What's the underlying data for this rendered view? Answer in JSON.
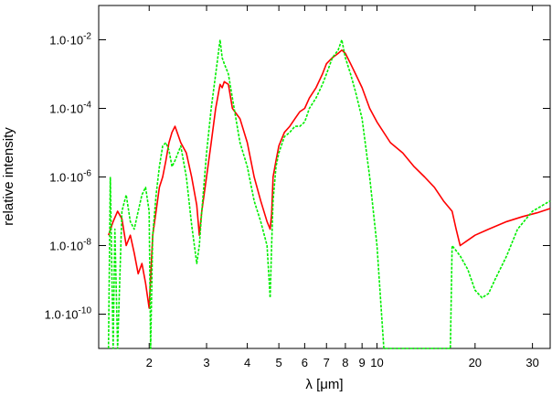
{
  "chart_data": {
    "type": "line",
    "title": "",
    "xlabel": "λ [μm]",
    "ylabel": "relative intensity",
    "x_scale": "log",
    "y_scale": "log",
    "xlim": [
      1.4,
      34
    ],
    "ylim": [
      1e-11,
      0.1
    ],
    "grid": false,
    "x_ticks": [
      {
        "value": 2,
        "label": "2"
      },
      {
        "value": 3,
        "label": "3"
      },
      {
        "value": 4,
        "label": "4"
      },
      {
        "value": 5,
        "label": "5"
      },
      {
        "value": 6,
        "label": "6"
      },
      {
        "value": 7,
        "label": "7"
      },
      {
        "value": 8,
        "label": "8"
      },
      {
        "value": 9,
        "label": "9"
      },
      {
        "value": 10,
        "label": "10"
      },
      {
        "value": 20,
        "label": "20"
      },
      {
        "value": 30,
        "label": "30"
      }
    ],
    "y_ticks": [
      {
        "value": 1e-10,
        "label": "1.0·10",
        "exp": "-10"
      },
      {
        "value": 1e-08,
        "label": "1.0·10",
        "exp": "-8"
      },
      {
        "value": 1e-06,
        "label": "1.0·10",
        "exp": "-6"
      },
      {
        "value": 0.0001,
        "label": "1.0·10",
        "exp": "-4"
      },
      {
        "value": 0.01,
        "label": "1.0·10",
        "exp": "-2"
      }
    ],
    "series": [
      {
        "color": "#ff0000",
        "dash": "solid",
        "x": [
          1.5,
          1.55,
          1.6,
          1.65,
          1.7,
          1.75,
          1.8,
          1.85,
          1.9,
          1.95,
          2.0,
          2.05,
          2.1,
          2.15,
          2.2,
          2.25,
          2.3,
          2.35,
          2.4,
          2.5,
          2.6,
          2.7,
          2.8,
          2.85,
          2.9,
          3.0,
          3.1,
          3.2,
          3.3,
          3.35,
          3.4,
          3.5,
          3.6,
          3.8,
          4.0,
          4.2,
          4.4,
          4.6,
          4.7,
          4.75,
          4.8,
          4.9,
          5.0,
          5.2,
          5.4,
          5.6,
          5.8,
          6.0,
          6.2,
          6.5,
          6.8,
          7.0,
          7.3,
          7.6,
          7.8,
          8.0,
          8.3,
          8.6,
          9.0,
          9.5,
          10.0,
          11.0,
          12.0,
          13.0,
          14.0,
          15.0,
          16.0,
          17.0,
          17.5,
          18.0,
          20.0,
          22.0,
          25.0,
          28.0,
          31.0,
          34.0
        ],
        "y": [
          2e-08,
          5e-08,
          1e-07,
          6e-08,
          1e-08,
          2e-08,
          6e-09,
          1.5e-09,
          3e-09,
          8e-10,
          1.5e-10,
          2e-08,
          1e-07,
          5e-07,
          1e-06,
          3e-06,
          1e-05,
          2e-05,
          3e-05,
          1e-05,
          5e-06,
          1e-06,
          1.5e-07,
          2e-08,
          1e-07,
          1e-06,
          1e-05,
          0.0001,
          0.0005,
          0.0004,
          0.0006,
          0.0005,
          0.0001,
          5e-05,
          1e-05,
          1e-06,
          2e-07,
          5e-08,
          3e-08,
          8e-08,
          1e-06,
          3e-06,
          8e-06,
          2e-05,
          3e-05,
          5e-05,
          8e-05,
          0.0001,
          0.0002,
          0.0004,
          0.001,
          0.002,
          0.003,
          0.004,
          0.005,
          0.004,
          0.002,
          0.001,
          0.0004,
          0.0001,
          4e-05,
          1e-05,
          5e-06,
          2e-06,
          1e-06,
          5e-07,
          2e-07,
          1e-07,
          3e-08,
          1e-08,
          2e-08,
          3e-08,
          5e-08,
          7e-08,
          9e-08,
          1.2e-07
        ]
      },
      {
        "color": "#00ee00",
        "dash": "dashed",
        "x": [
          1.5,
          1.52,
          1.55,
          1.57,
          1.6,
          1.65,
          1.7,
          1.75,
          1.8,
          1.85,
          1.9,
          1.95,
          2.0,
          2.02,
          2.05,
          2.1,
          2.15,
          2.2,
          2.25,
          2.3,
          2.35,
          2.4,
          2.5,
          2.6,
          2.7,
          2.8,
          2.85,
          2.9,
          3.0,
          3.1,
          3.2,
          3.3,
          3.35,
          3.4,
          3.5,
          3.6,
          3.8,
          4.0,
          4.2,
          4.4,
          4.6,
          4.7,
          4.75,
          4.8,
          4.9,
          5.0,
          5.2,
          5.4,
          5.6,
          5.8,
          6.0,
          6.2,
          6.5,
          6.8,
          7.0,
          7.3,
          7.6,
          7.8,
          8.0,
          8.3,
          8.6,
          9.0,
          9.5,
          10.0,
          10.5,
          11.0,
          11.3,
          16.8,
          17.0,
          18.0,
          19.0,
          20.0,
          21.0,
          22.0,
          23.0,
          25.0,
          27.0,
          30.0,
          34.0
        ],
        "y": [
          1e-11,
          1e-06,
          1e-11,
          3e-08,
          1e-11,
          1e-07,
          3e-07,
          5e-08,
          3e-08,
          1e-07,
          3e-07,
          5e-07,
          1e-07,
          1e-11,
          2e-08,
          3e-07,
          2e-06,
          8e-06,
          1e-05,
          6e-06,
          2e-06,
          3e-06,
          8e-06,
          1e-06,
          4e-08,
          3e-09,
          1e-08,
          1e-07,
          5e-06,
          0.0001,
          0.001,
          0.01,
          0.003,
          0.002,
          0.001,
          0.0002,
          1e-05,
          2e-06,
          2e-07,
          5e-08,
          1e-08,
          3e-10,
          1e-08,
          2e-07,
          2e-06,
          5e-06,
          1.5e-05,
          2e-05,
          3e-05,
          3e-05,
          4e-05,
          0.0001,
          0.0002,
          0.0005,
          0.001,
          0.003,
          0.005,
          0.01,
          0.003,
          0.001,
          0.0003,
          5e-05,
          1e-06,
          1e-08,
          1e-11,
          1e-11,
          1e-11,
          1e-11,
          1e-08,
          5e-09,
          2e-09,
          5e-10,
          3e-10,
          4e-10,
          1e-09,
          5e-09,
          3e-08,
          1e-07,
          2e-07
        ]
      }
    ]
  }
}
